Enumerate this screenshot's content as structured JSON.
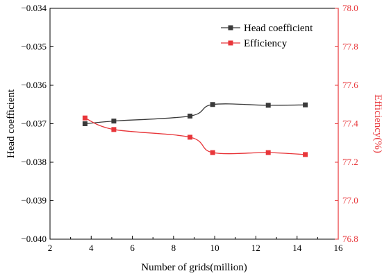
{
  "chart_data": {
    "type": "line",
    "xlabel": "Number of grids(million)",
    "ylabel": "Head coefficient",
    "y2label": "Efficiency(%)",
    "xlim": [
      2,
      16
    ],
    "ylim": [
      -0.04,
      -0.034
    ],
    "y2lim": [
      76.8,
      78.0
    ],
    "xticks": [
      "2",
      "4",
      "6",
      "8",
      "10",
      "12",
      "14",
      "16"
    ],
    "yticks": [
      "-0.034",
      "-0.035",
      "-0.036",
      "-0.037",
      "-0.038",
      "-0.039",
      "-0.040"
    ],
    "y2ticks": [
      "78.0",
      "77.8",
      "77.6",
      "77.4",
      "77.2",
      "77.0",
      "76.8"
    ],
    "x": [
      3.7,
      5.1,
      8.8,
      9.9,
      12.6,
      14.4
    ],
    "series": [
      {
        "name": "Head coefficient",
        "axis": "left",
        "color": "#3a3a3a",
        "marker": "square",
        "values": [
          -0.037,
          -0.03693,
          -0.0368,
          -0.0365,
          -0.03652,
          -0.03651
        ]
      },
      {
        "name": "Efficiency",
        "axis": "right",
        "color": "#e8363a",
        "marker": "square",
        "values": [
          77.43,
          77.37,
          77.33,
          77.25,
          77.25,
          77.24
        ]
      }
    ],
    "legend": "top-right",
    "grid": false,
    "colors": {
      "axis_left": "#000000",
      "axis_right": "#e8363a"
    }
  }
}
